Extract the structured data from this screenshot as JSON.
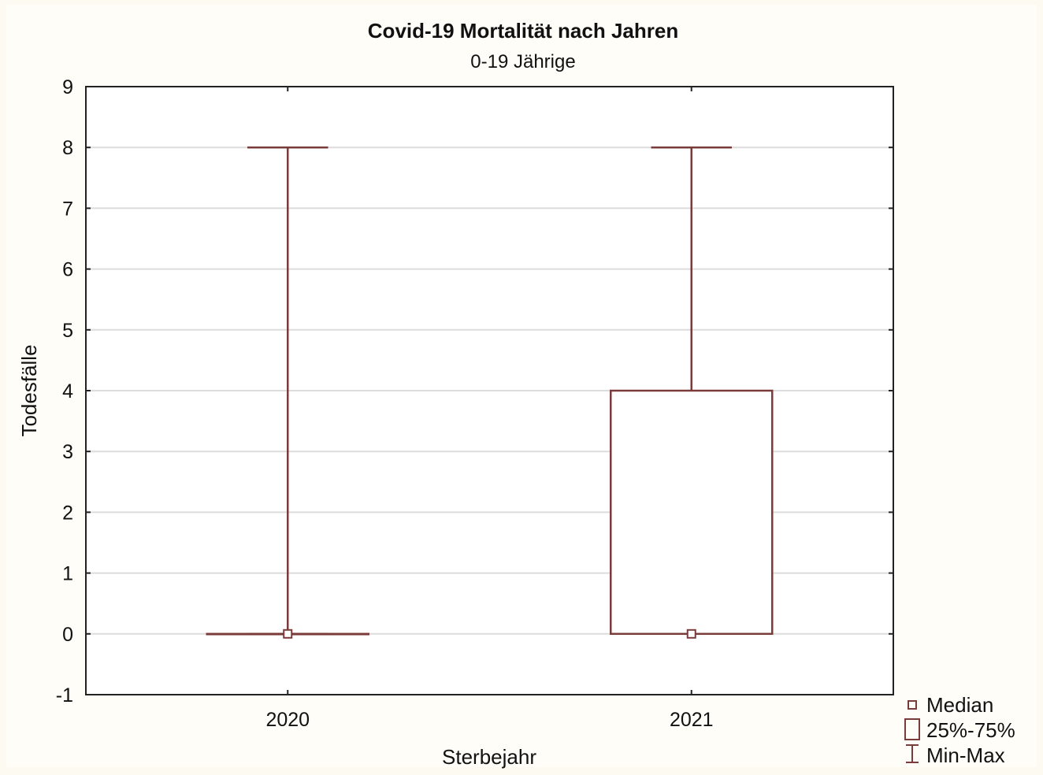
{
  "chart_data": {
    "type": "boxplot",
    "title": "Covid-19 Mortalität nach Jahren",
    "subtitle": "0-19 Jährige",
    "xlabel": "Sterbejahr",
    "ylabel": "Todesfälle",
    "ylim": [
      -1,
      9
    ],
    "yticks": [
      "-1",
      "0",
      "1",
      "2",
      "3",
      "4",
      "5",
      "6",
      "7",
      "8",
      "9"
    ],
    "grid": true,
    "categories": [
      "2020",
      "2021"
    ],
    "boxes": [
      {
        "category": "2020",
        "median": 0,
        "q1": 0,
        "q3": 0,
        "min": 0,
        "max": 8
      },
      {
        "category": "2021",
        "median": 0,
        "q1": 0,
        "q3": 4,
        "min": 0,
        "max": 8
      }
    ],
    "legend": {
      "position": "bottom-right",
      "items": [
        {
          "symbol": "median",
          "label": "Median"
        },
        {
          "symbol": "box",
          "label": "25%-75%"
        },
        {
          "symbol": "whisker",
          "label": "Min-Max"
        }
      ]
    },
    "colors": {
      "background": "#fdfaf1",
      "plot_background": "#ffffff",
      "box_stroke": "#7a3b3b",
      "grid": "#dcdcdc",
      "axis": "#222222"
    }
  }
}
